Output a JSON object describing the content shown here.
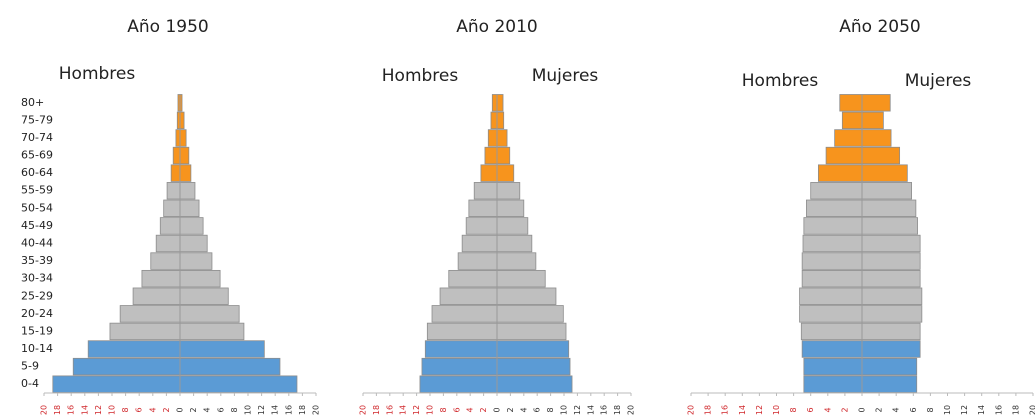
{
  "chart_data": [
    {
      "type": "pyramid",
      "title": "Año 1950",
      "categories": [
        "80+",
        "75-79",
        "70-74",
        "65-69",
        "60-64",
        "55-59",
        "50-54",
        "45-49",
        "40-44",
        "35-39",
        "30-34",
        "25-29",
        "20-24",
        "15-19",
        "10-14",
        "5-9",
        "0-4"
      ],
      "colors": [
        "#f7941d",
        "#f7941d",
        "#f7941d",
        "#f7941d",
        "#f7941d",
        "#bfbfbf",
        "#bfbfbf",
        "#bfbfbf",
        "#bfbfbf",
        "#bfbfbf",
        "#bfbfbf",
        "#bfbfbf",
        "#bfbfbf",
        "#bfbfbf",
        "#5b9bd5",
        "#5b9bd5",
        "#5b9bd5"
      ],
      "series": [
        {
          "name": "Hombres",
          "side": "left",
          "values": [
            0.3,
            0.4,
            0.6,
            1.0,
            1.3,
            1.9,
            2.4,
            2.9,
            3.5,
            4.3,
            5.6,
            6.9,
            8.8,
            10.3,
            13.5,
            15.7,
            18.7
          ]
        },
        {
          "side": "right",
          "values": [
            0.3,
            0.6,
            0.9,
            1.3,
            1.6,
            2.2,
            2.8,
            3.4,
            4.0,
            4.7,
            5.9,
            7.1,
            8.7,
            9.4,
            12.4,
            14.7,
            17.2
          ]
        }
      ],
      "xlim": [
        -20,
        20
      ],
      "xticks": [
        {
          "value": -20,
          "label": "20"
        },
        {
          "value": -18,
          "label": "18"
        },
        {
          "value": -16,
          "label": "16"
        },
        {
          "value": -14,
          "label": "14"
        },
        {
          "value": -12,
          "label": "12"
        },
        {
          "value": -10,
          "label": "10"
        },
        {
          "value": -8,
          "label": "8"
        },
        {
          "value": -6,
          "label": "6"
        },
        {
          "value": -4,
          "label": "4"
        },
        {
          "value": -2,
          "label": "2"
        },
        0,
        2,
        4,
        6,
        8,
        10,
        12,
        14,
        16,
        18,
        20
      ]
    },
    {
      "type": "pyramid",
      "title": "Año 2010",
      "categories": [
        null,
        null,
        null,
        null,
        null,
        null,
        null,
        null,
        null,
        null,
        null,
        null,
        null,
        null,
        null,
        null,
        null
      ],
      "colors": [
        "#f7941d",
        "#f7941d",
        "#f7941d",
        "#f7941d",
        "#f7941d",
        "#bfbfbf",
        "#bfbfbf",
        "#bfbfbf",
        "#bfbfbf",
        "#bfbfbf",
        "#bfbfbf",
        "#bfbfbf",
        "#bfbfbf",
        "#bfbfbf",
        "#5b9bd5",
        "#5b9bd5",
        "#5b9bd5"
      ],
      "series": [
        {
          "name": "Hombres",
          "side": "left",
          "values": [
            0.7,
            0.9,
            1.3,
            1.8,
            2.4,
            3.4,
            4.2,
            4.6,
            5.2,
            5.8,
            7.2,
            8.5,
            9.7,
            10.4,
            10.7,
            11.2,
            11.5
          ]
        },
        {
          "name": "Mujeres",
          "side": "right",
          "values": [
            0.9,
            1.0,
            1.5,
            1.9,
            2.5,
            3.4,
            4.0,
            4.6,
            5.2,
            5.8,
            7.2,
            8.8,
            9.9,
            10.3,
            10.7,
            10.9,
            11.2
          ]
        }
      ],
      "xlim": [
        -20,
        20
      ],
      "xticks": [
        {
          "value": -20,
          "label": "20"
        },
        {
          "value": -18,
          "label": "18"
        },
        {
          "value": -16,
          "label": "16"
        },
        {
          "value": -14,
          "label": "14"
        },
        {
          "value": -12,
          "label": "12"
        },
        {
          "value": -10,
          "label": "10"
        },
        {
          "value": -8,
          "label": "8"
        },
        {
          "value": -6,
          "label": "6"
        },
        {
          "value": -4,
          "label": "4"
        },
        {
          "value": -2,
          "label": "2"
        },
        0,
        2,
        4,
        6,
        8,
        10,
        12,
        14,
        16,
        18,
        20
      ]
    },
    {
      "type": "pyramid",
      "title": "Año 2050",
      "categories": [
        null,
        null,
        null,
        null,
        null,
        null,
        null,
        null,
        null,
        null,
        null,
        null,
        null,
        null,
        null,
        null,
        null
      ],
      "colors": [
        "#f7941d",
        "#f7941d",
        "#f7941d",
        "#f7941d",
        "#f7941d",
        "#bfbfbf",
        "#bfbfbf",
        "#bfbfbf",
        "#bfbfbf",
        "#bfbfbf",
        "#bfbfbf",
        "#bfbfbf",
        "#bfbfbf",
        "#bfbfbf",
        "#5b9bd5",
        "#5b9bd5",
        "#5b9bd5"
      ],
      "series": [
        {
          "name": "Hombres",
          "side": "left",
          "values": [
            2.6,
            2.3,
            3.2,
            4.2,
            5.1,
            6.0,
            6.5,
            6.8,
            6.9,
            7.0,
            7.0,
            7.3,
            7.3,
            7.1,
            7.0,
            6.8,
            6.8
          ]
        },
        {
          "name": "Mujeres",
          "side": "right",
          "values": [
            3.3,
            2.5,
            3.4,
            4.4,
            5.3,
            5.8,
            6.3,
            6.5,
            6.8,
            6.8,
            6.8,
            7.0,
            7.0,
            6.8,
            6.8,
            6.4,
            6.4
          ]
        }
      ],
      "xlim": [
        -20,
        20
      ],
      "xticks": [
        {
          "value": -20,
          "label": "20"
        },
        {
          "value": -18,
          "label": "18"
        },
        {
          "value": -16,
          "label": "16"
        },
        {
          "value": -14,
          "label": "14"
        },
        {
          "value": -12,
          "label": "12"
        },
        {
          "value": -10,
          "label": "10"
        },
        {
          "value": -8,
          "label": "8"
        },
        {
          "value": -6,
          "label": "6"
        },
        {
          "value": -4,
          "label": "4"
        },
        {
          "value": -2,
          "label": "2"
        },
        0,
        2,
        4,
        6,
        8,
        10,
        12,
        14,
        16,
        18,
        20
      ]
    }
  ]
}
